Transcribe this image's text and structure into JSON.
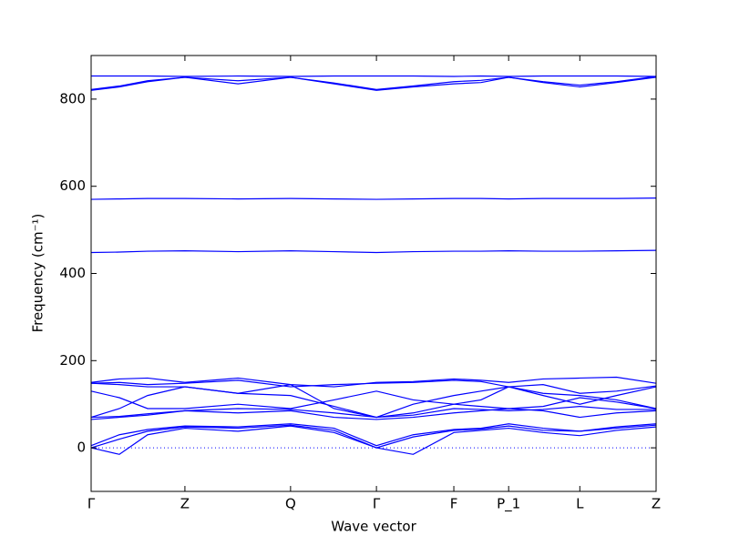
{
  "chart_data": {
    "type": "line",
    "x_label": "Wave vector",
    "y_label": "Frequency (cm⁻¹)",
    "xlim": [
      0,
      1
    ],
    "ylim": [
      -100,
      900
    ],
    "xticks": [
      {
        "value": 0,
        "label": "Γ"
      },
      {
        "value": 0.166,
        "label": "Z"
      },
      {
        "value": 0.353,
        "label": "Q"
      },
      {
        "value": 0.505,
        "label": "Γ"
      },
      {
        "value": 0.642,
        "label": "F"
      },
      {
        "value": 0.739,
        "label": "P_1"
      },
      {
        "value": 0.865,
        "label": "L"
      },
      {
        "value": 1,
        "label": "Z"
      }
    ],
    "yticks": [
      0,
      200,
      400,
      600,
      800
    ],
    "zero_line": 0,
    "x": [
      0,
      0.05,
      0.1,
      0.166,
      0.26,
      0.353,
      0.43,
      0.505,
      0.57,
      0.642,
      0.69,
      0.739,
      0.8,
      0.865,
      0.93,
      1.0
    ],
    "series": [
      {
        "color": "#0000ff",
        "values": [
          853,
          853,
          853,
          852,
          853,
          852,
          853,
          853,
          853,
          852,
          853,
          852,
          853,
          853,
          853,
          852
        ]
      },
      {
        "color": "#0000ff",
        "values": [
          820,
          828,
          840,
          850,
          835,
          850,
          835,
          820,
          828,
          835,
          838,
          850,
          838,
          828,
          838,
          850
        ]
      },
      {
        "color": "#0000ff",
        "values": [
          822,
          830,
          842,
          850,
          842,
          850,
          837,
          822,
          830,
          840,
          843,
          850,
          840,
          832,
          840,
          852
        ]
      },
      {
        "color": "#0000ff",
        "values": [
          570,
          571,
          572,
          572,
          571,
          572,
          571,
          570,
          571,
          572,
          572,
          571,
          572,
          572,
          572,
          573
        ]
      },
      {
        "color": "#0000ff",
        "values": [
          448,
          449,
          451,
          452,
          450,
          452,
          450,
          448,
          450,
          451,
          451,
          452,
          451,
          451,
          452,
          453
        ]
      },
      {
        "color": "#0000ff",
        "values": [
          0,
          -15,
          30,
          45,
          38,
          50,
          35,
          0,
          -15,
          35,
          40,
          45,
          35,
          28,
          40,
          48
        ]
      },
      {
        "color": "#0000ff",
        "values": [
          0,
          20,
          38,
          48,
          45,
          52,
          40,
          0,
          25,
          40,
          43,
          50,
          40,
          38,
          45,
          52
        ]
      },
      {
        "color": "#0000ff",
        "values": [
          5,
          30,
          42,
          50,
          48,
          55,
          45,
          5,
          30,
          42,
          45,
          55,
          45,
          38,
          48,
          55
        ]
      },
      {
        "color": "#0000ff",
        "values": [
          65,
          70,
          75,
          85,
          80,
          85,
          70,
          65,
          70,
          80,
          85,
          90,
          85,
          70,
          80,
          85
        ]
      },
      {
        "color": "#0000ff",
        "values": [
          70,
          72,
          78,
          85,
          90,
          88,
          80,
          70,
          75,
          90,
          88,
          85,
          88,
          95,
          88,
          88
        ]
      },
      {
        "color": "#0000ff",
        "values": [
          130,
          115,
          90,
          90,
          100,
          90,
          110,
          130,
          110,
          100,
          95,
          90,
          95,
          115,
          105,
          90
        ]
      },
      {
        "color": "#0000ff",
        "values": [
          148,
          145,
          140,
          140,
          125,
          120,
          95,
          70,
          80,
          100,
          110,
          140,
          120,
          100,
          120,
          140
        ]
      },
      {
        "color": "#0000ff",
        "values": [
          148,
          150,
          145,
          148,
          155,
          140,
          145,
          148,
          150,
          155,
          152,
          140,
          145,
          125,
          130,
          142
        ]
      },
      {
        "color": "#0000ff",
        "values": [
          150,
          158,
          160,
          150,
          160,
          145,
          140,
          150,
          152,
          158,
          155,
          150,
          158,
          160,
          162,
          148
        ]
      },
      {
        "color": "#0000ff",
        "values": [
          70,
          90,
          120,
          140,
          125,
          145,
          90,
          70,
          100,
          120,
          130,
          140,
          125,
          120,
          110,
          90
        ]
      }
    ]
  }
}
